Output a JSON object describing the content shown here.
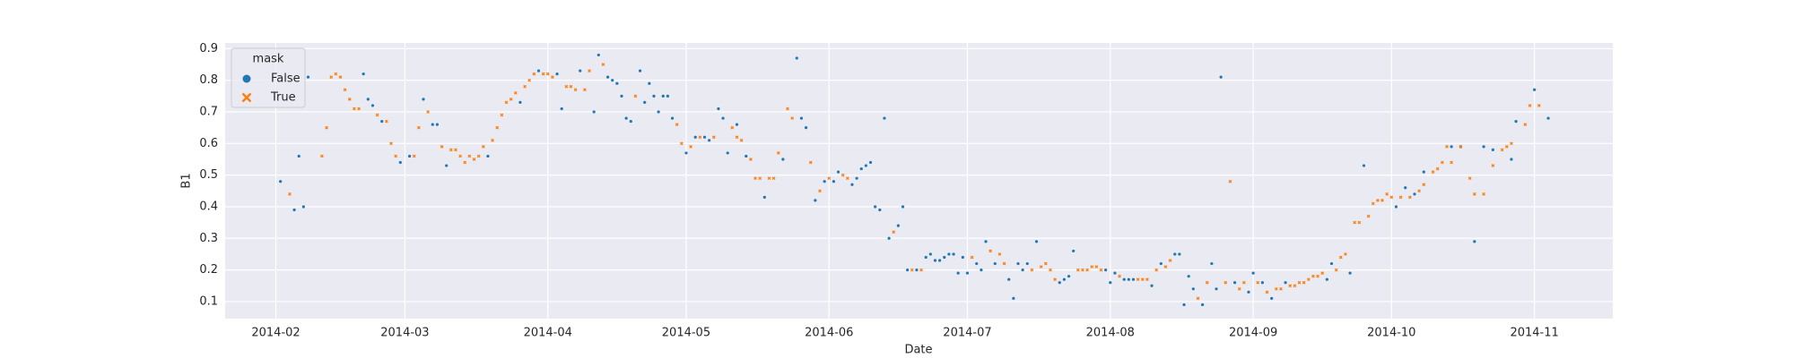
{
  "chart_data": {
    "type": "scatter",
    "xlabel": "Date",
    "ylabel": "B1",
    "legend_title": "mask",
    "legend_loc": "upper left",
    "grid": true,
    "xlim": [
      21,
      322
    ],
    "ylim": [
      0.046,
      0.918
    ],
    "xticks": [
      {
        "value": 32,
        "label": "2014-02"
      },
      {
        "value": 60,
        "label": "2014-03"
      },
      {
        "value": 91,
        "label": "2014-04"
      },
      {
        "value": 121,
        "label": "2014-05"
      },
      {
        "value": 152,
        "label": "2014-06"
      },
      {
        "value": 182,
        "label": "2014-07"
      },
      {
        "value": 213,
        "label": "2014-08"
      },
      {
        "value": 244,
        "label": "2014-09"
      },
      {
        "value": 274,
        "label": "2014-10"
      },
      {
        "value": 305,
        "label": "2014-11"
      }
    ],
    "yticks": [
      0.1,
      0.2,
      0.3,
      0.4,
      0.5,
      0.6,
      0.7,
      0.8,
      0.9
    ],
    "series": [
      {
        "name": "False",
        "color": "#1f77b4",
        "marker": "o",
        "x": [
          33,
          36,
          37,
          38,
          39,
          51,
          52,
          53,
          55,
          59,
          61,
          64,
          66,
          67,
          69,
          78,
          85,
          89,
          93,
          94,
          98,
          101,
          102,
          104,
          105,
          106,
          107,
          108,
          109,
          111,
          112,
          113,
          114,
          115,
          116,
          117,
          118,
          121,
          123,
          125,
          126,
          128,
          129,
          130,
          132,
          134,
          138,
          142,
          145,
          146,
          147,
          149,
          151,
          153,
          154,
          157,
          158,
          159,
          160,
          161,
          162,
          163,
          164,
          165,
          167,
          168,
          169,
          171,
          173,
          174,
          175,
          176,
          177,
          178,
          179,
          180,
          181,
          182,
          184,
          185,
          186,
          188,
          191,
          192,
          193,
          194,
          195,
          197,
          202,
          203,
          204,
          205,
          212,
          213,
          214,
          216,
          217,
          218,
          222,
          224,
          227,
          228,
          229,
          230,
          231,
          233,
          235,
          236,
          237,
          240,
          243,
          244,
          246,
          248,
          251,
          260,
          261,
          265,
          268,
          275,
          277,
          279,
          281,
          287,
          289,
          292,
          294,
          296,
          300,
          301,
          305,
          308
        ],
        "values": [
          0.48,
          0.39,
          0.56,
          0.4,
          0.81,
          0.82,
          0.74,
          0.72,
          0.67,
          0.54,
          0.56,
          0.74,
          0.66,
          0.66,
          0.53,
          0.56,
          0.73,
          0.83,
          0.82,
          0.71,
          0.83,
          0.7,
          0.88,
          0.81,
          0.8,
          0.79,
          0.75,
          0.68,
          0.67,
          0.83,
          0.73,
          0.79,
          0.75,
          0.7,
          0.75,
          0.75,
          0.68,
          0.57,
          0.62,
          0.62,
          0.61,
          0.71,
          0.68,
          0.57,
          0.66,
          0.56,
          0.43,
          0.55,
          0.87,
          0.68,
          0.65,
          0.42,
          0.48,
          0.48,
          0.51,
          0.47,
          0.49,
          0.52,
          0.53,
          0.54,
          0.4,
          0.39,
          0.68,
          0.3,
          0.34,
          0.4,
          0.2,
          0.2,
          0.24,
          0.25,
          0.23,
          0.23,
          0.24,
          0.25,
          0.25,
          0.19,
          0.24,
          0.19,
          0.22,
          0.2,
          0.29,
          0.22,
          0.17,
          0.11,
          0.22,
          0.2,
          0.22,
          0.29,
          0.16,
          0.17,
          0.18,
          0.26,
          0.2,
          0.16,
          0.19,
          0.17,
          0.17,
          0.17,
          0.15,
          0.22,
          0.25,
          0.25,
          0.09,
          0.18,
          0.14,
          0.09,
          0.22,
          0.14,
          0.81,
          0.16,
          0.13,
          0.19,
          0.16,
          0.11,
          0.16,
          0.17,
          0.22,
          0.19,
          0.53,
          0.4,
          0.46,
          0.44,
          0.51,
          0.59,
          0.59,
          0.29,
          0.59,
          0.58,
          0.55,
          0.67,
          0.77,
          0.68
        ]
      },
      {
        "name": "True",
        "color": "#ff7f0e",
        "marker": "x",
        "x": [
          35,
          42,
          43,
          44,
          45,
          46,
          47,
          48,
          49,
          50,
          54,
          56,
          57,
          58,
          62,
          63,
          65,
          68,
          70,
          71,
          72,
          73,
          74,
          75,
          76,
          77,
          79,
          80,
          81,
          82,
          83,
          84,
          86,
          87,
          88,
          90,
          91,
          92,
          95,
          96,
          97,
          99,
          100,
          103,
          110,
          119,
          120,
          122,
          124,
          127,
          131,
          132,
          133,
          135,
          136,
          137,
          139,
          140,
          141,
          143,
          144,
          148,
          150,
          152,
          155,
          156,
          166,
          170,
          172,
          183,
          187,
          189,
          190,
          196,
          198,
          199,
          200,
          201,
          206,
          207,
          208,
          209,
          210,
          211,
          215,
          219,
          220,
          221,
          223,
          225,
          226,
          232,
          234,
          238,
          239,
          241,
          242,
          245,
          247,
          249,
          250,
          252,
          253,
          254,
          255,
          256,
          257,
          258,
          259,
          262,
          263,
          264,
          266,
          267,
          269,
          270,
          271,
          272,
          273,
          274,
          276,
          278,
          280,
          281,
          283,
          284,
          285,
          286,
          287,
          289,
          291,
          292,
          294,
          296,
          298,
          299,
          300,
          303,
          304,
          306
        ],
        "values": [
          0.44,
          0.56,
          0.65,
          0.81,
          0.82,
          0.81,
          0.77,
          0.74,
          0.71,
          0.71,
          0.69,
          0.67,
          0.6,
          0.56,
          0.56,
          0.65,
          0.7,
          0.59,
          0.58,
          0.58,
          0.56,
          0.54,
          0.56,
          0.55,
          0.56,
          0.59,
          0.61,
          0.65,
          0.69,
          0.73,
          0.74,
          0.76,
          0.78,
          0.8,
          0.82,
          0.82,
          0.82,
          0.81,
          0.78,
          0.78,
          0.77,
          0.77,
          0.83,
          0.85,
          0.75,
          0.66,
          0.6,
          0.59,
          0.62,
          0.62,
          0.65,
          0.62,
          0.61,
          0.55,
          0.49,
          0.49,
          0.49,
          0.49,
          0.57,
          0.71,
          0.68,
          0.54,
          0.45,
          0.49,
          0.5,
          0.49,
          0.32,
          0.2,
          0.2,
          0.24,
          0.26,
          0.25,
          0.22,
          0.2,
          0.21,
          0.22,
          0.2,
          0.17,
          0.2,
          0.2,
          0.2,
          0.21,
          0.21,
          0.2,
          0.18,
          0.17,
          0.17,
          0.17,
          0.2,
          0.21,
          0.23,
          0.11,
          0.16,
          0.16,
          0.48,
          0.14,
          0.16,
          0.16,
          0.13,
          0.14,
          0.14,
          0.15,
          0.15,
          0.16,
          0.16,
          0.17,
          0.18,
          0.18,
          0.19,
          0.2,
          0.24,
          0.25,
          0.35,
          0.35,
          0.37,
          0.41,
          0.42,
          0.42,
          0.44,
          0.43,
          0.43,
          0.43,
          0.45,
          0.47,
          0.51,
          0.52,
          0.54,
          0.59,
          0.54,
          0.59,
          0.49,
          0.44,
          0.44,
          0.53,
          0.58,
          0.59,
          0.6,
          0.66,
          0.72,
          0.72
        ]
      }
    ]
  }
}
